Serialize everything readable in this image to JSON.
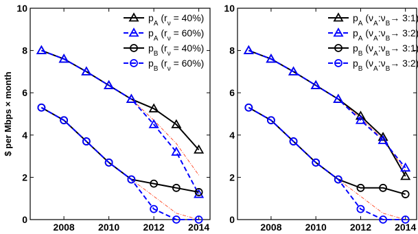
{
  "chart_data": [
    {
      "type": "line",
      "title": "",
      "xlabel": "",
      "ylabel": "$ per Mbps × month",
      "xlim": [
        2006.5,
        2014.5
      ],
      "ylim": [
        0,
        10
      ],
      "x_ticks": [
        "2008",
        "2010",
        "2012",
        "2014"
      ],
      "y_ticks": [
        "0",
        "2",
        "4",
        "6",
        "8",
        "10"
      ],
      "grid": false,
      "legend_position": "top-right",
      "x": [
        2007,
        2008,
        2009,
        2010,
        2011,
        2012,
        2013,
        2014
      ],
      "series": [
        {
          "name": "p",
          "sub": "A",
          "cond": " (r",
          "cond_sub": "ν",
          "cond_tail": " = 40%)",
          "color": "#000000",
          "marker": "triangle",
          "dashed": false,
          "values": [
            8.0,
            7.6,
            7.0,
            6.35,
            5.7,
            5.25,
            4.5,
            3.3
          ]
        },
        {
          "name": "p",
          "sub": "A",
          "cond": " (r",
          "cond_sub": "ν",
          "cond_tail": " = 60%)",
          "color": "#0000ff",
          "marker": "triangle",
          "dashed": true,
          "values": [
            8.0,
            7.6,
            7.0,
            6.35,
            5.7,
            4.5,
            3.2,
            1.2
          ]
        },
        {
          "name": "p",
          "sub": "B",
          "cond": " (r",
          "cond_sub": "ν",
          "cond_tail": " = 40%)",
          "color": "#000000",
          "marker": "circle",
          "dashed": false,
          "values": [
            5.3,
            4.7,
            3.7,
            2.7,
            1.9,
            1.7,
            1.5,
            1.3
          ]
        },
        {
          "name": "p",
          "sub": "B",
          "cond": " (r",
          "cond_sub": "ν",
          "cond_tail": " = 60%)",
          "color": "#0000ff",
          "marker": "circle",
          "dashed": true,
          "values": [
            5.3,
            4.7,
            3.7,
            2.7,
            1.9,
            0.5,
            0.0,
            0.0
          ]
        }
      ],
      "reference_lines": [
        {
          "color": "#ff2a00",
          "values": [
            8.0,
            7.6,
            7.0,
            6.35,
            5.7,
            4.7,
            3.6,
            2.1
          ]
        },
        {
          "color": "#ff2a00",
          "values": [
            5.3,
            4.7,
            3.7,
            2.7,
            1.9,
            1.1,
            0.3,
            0.0
          ]
        }
      ]
    },
    {
      "type": "line",
      "title": "",
      "xlabel": "",
      "ylabel": "",
      "xlim": [
        2006.5,
        2014.5
      ],
      "ylim": [
        0,
        10
      ],
      "x_ticks": [
        "2008",
        "2010",
        "2012",
        "2014"
      ],
      "y_ticks": [
        "0",
        "2",
        "4",
        "6",
        "8",
        "10"
      ],
      "grid": false,
      "legend_position": "top-right",
      "x": [
        2007,
        2008,
        2009,
        2010,
        2011,
        2012,
        2013,
        2014
      ],
      "series": [
        {
          "name": "p",
          "sub": "A",
          "cond": " (ν",
          "cond_sub": "A",
          "cond_mid": ":ν",
          "cond_sub2": "B",
          "cond_tail": "→ 3:1)",
          "color": "#000000",
          "marker": "triangle",
          "dashed": false,
          "values": [
            8.0,
            7.6,
            7.0,
            6.35,
            5.7,
            4.9,
            3.9,
            2.05
          ]
        },
        {
          "name": "p",
          "sub": "A",
          "cond": " (ν",
          "cond_sub": "A",
          "cond_mid": ":ν",
          "cond_sub2": "B",
          "cond_tail": "→ 3:2)",
          "color": "#0000ff",
          "marker": "triangle",
          "dashed": true,
          "values": [
            8.0,
            7.6,
            7.0,
            6.35,
            5.7,
            4.7,
            3.75,
            2.45
          ]
        },
        {
          "name": "p",
          "sub": "B",
          "cond": " (ν",
          "cond_sub": "A",
          "cond_mid": ":ν",
          "cond_sub2": "B",
          "cond_tail": "→ 3:1)",
          "color": "#000000",
          "marker": "circle",
          "dashed": false,
          "values": [
            5.3,
            4.7,
            3.7,
            2.7,
            1.9,
            1.5,
            1.5,
            1.2
          ]
        },
        {
          "name": "p",
          "sub": "B",
          "cond": " (ν",
          "cond_sub": "A",
          "cond_mid": ":ν",
          "cond_sub2": "B",
          "cond_tail": "→ 3:2)",
          "color": "#0000ff",
          "marker": "circle",
          "dashed": true,
          "values": [
            5.3,
            4.7,
            3.7,
            2.7,
            1.9,
            0.5,
            0.0,
            0.0
          ]
        }
      ],
      "reference_lines": [
        {
          "color": "#ff2a00",
          "values": [
            8.0,
            7.6,
            7.0,
            6.35,
            5.7,
            4.8,
            3.8,
            2.3
          ]
        },
        {
          "color": "#ff2a00",
          "values": [
            5.3,
            4.7,
            3.7,
            2.7,
            1.9,
            1.1,
            0.3,
            0.0
          ]
        }
      ]
    }
  ]
}
